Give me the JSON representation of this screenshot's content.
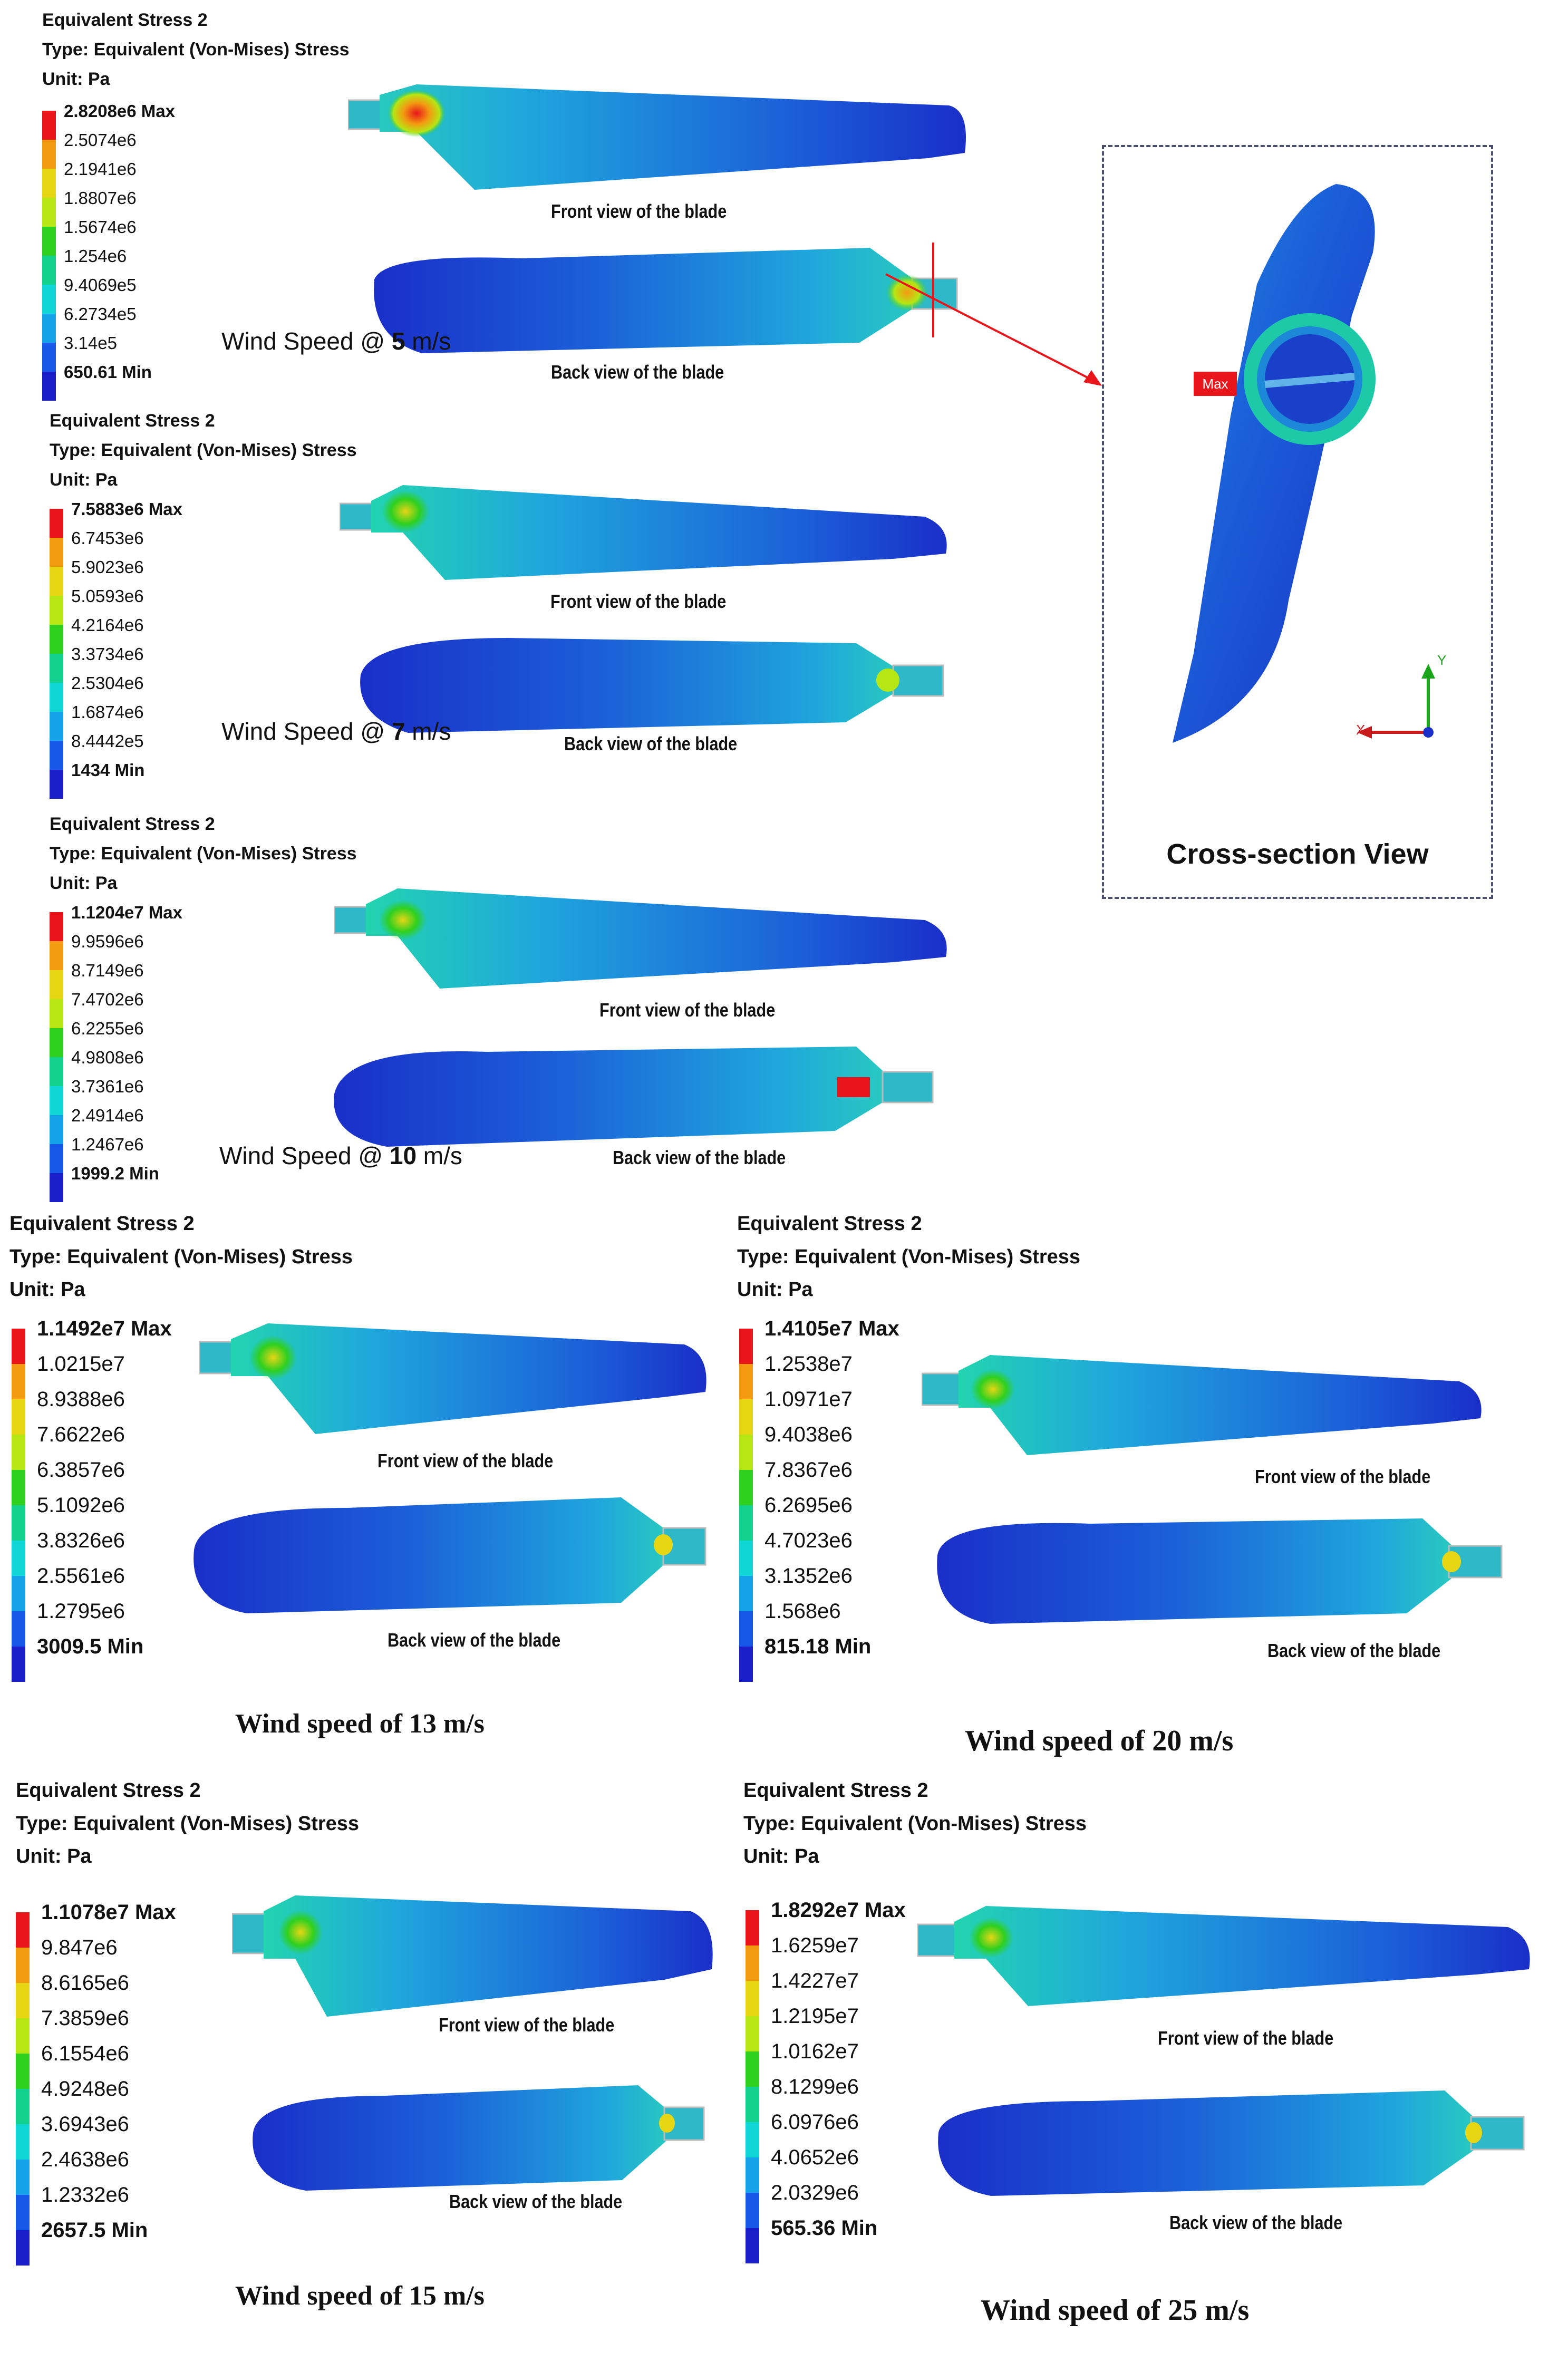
{
  "header": {
    "title": "Equivalent Stress 2",
    "type": "Type: Equivalent (Von-Mises) Stress",
    "unit": "Unit: Pa"
  },
  "captions": {
    "front": "Front view of the blade",
    "back": "Back view of the blade"
  },
  "panels": [
    {
      "wind_prefix": "Wind Speed @ ",
      "wind_value": "5",
      "wind_unit": " m/s",
      "legend": [
        "2.8208e6 Max",
        "2.5074e6",
        "2.1941e6",
        "1.8807e6",
        "1.5674e6",
        "1.254e6",
        "9.4069e5",
        "6.2734e5",
        "3.14e5",
        "650.61 Min"
      ]
    },
    {
      "wind_prefix": "Wind Speed @ ",
      "wind_value": "7",
      "wind_unit": " m/s",
      "legend": [
        "7.5883e6 Max",
        "6.7453e6",
        "5.9023e6",
        "5.0593e6",
        "4.2164e6",
        "3.3734e6",
        "2.5304e6",
        "1.6874e6",
        "8.4442e5",
        "1434 Min"
      ]
    },
    {
      "wind_prefix": "Wind Speed @ ",
      "wind_value": "10",
      "wind_unit": " m/s",
      "legend": [
        "1.1204e7 Max",
        "9.9596e6",
        "8.7149e6",
        "7.4702e6",
        "6.2255e6",
        "4.9808e6",
        "3.7361e6",
        "2.4914e6",
        "1.2467e6",
        "1999.2 Min"
      ]
    },
    {
      "wind_text": "Wind speed of 13 m/s",
      "legend": [
        "1.1492e7 Max",
        "1.0215e7",
        "8.9388e6",
        "7.6622e6",
        "6.3857e6",
        "5.1092e6",
        "3.8326e6",
        "2.5561e6",
        "1.2795e6",
        "3009.5 Min"
      ]
    },
    {
      "wind_text": "Wind speed of 20 m/s",
      "legend": [
        "1.4105e7 Max",
        "1.2538e7",
        "1.0971e7",
        "9.4038e6",
        "7.8367e6",
        "6.2695e6",
        "4.7023e6",
        "3.1352e6",
        "1.568e6",
        "815.18 Min"
      ]
    },
    {
      "wind_text": "Wind speed of 15 m/s",
      "legend": [
        "1.1078e7 Max",
        "9.847e6",
        "8.6165e6",
        "7.3859e6",
        "6.1554e6",
        "4.9248e6",
        "3.6943e6",
        "2.4638e6",
        "1.2332e6",
        "2657.5 Min"
      ]
    },
    {
      "wind_text": "Wind speed of 25 m/s",
      "legend": [
        "1.8292e7 Max",
        "1.6259e7",
        "1.4227e7",
        "1.2195e7",
        "1.0162e7",
        "8.1299e6",
        "6.0976e6",
        "4.0652e6",
        "2.0329e6",
        "565.36 Min"
      ]
    }
  ],
  "legend_colors": [
    "#e8161b",
    "#f39a11",
    "#e6d614",
    "#b6e614",
    "#2fd01f",
    "#12d08e",
    "#11d6d6",
    "#14a2e8",
    "#1858e8",
    "#1a1fc9"
  ],
  "cross_section": {
    "title": "Cross-section View",
    "max_label": "Max",
    "axis_y": "Y",
    "axis_x": "X"
  }
}
